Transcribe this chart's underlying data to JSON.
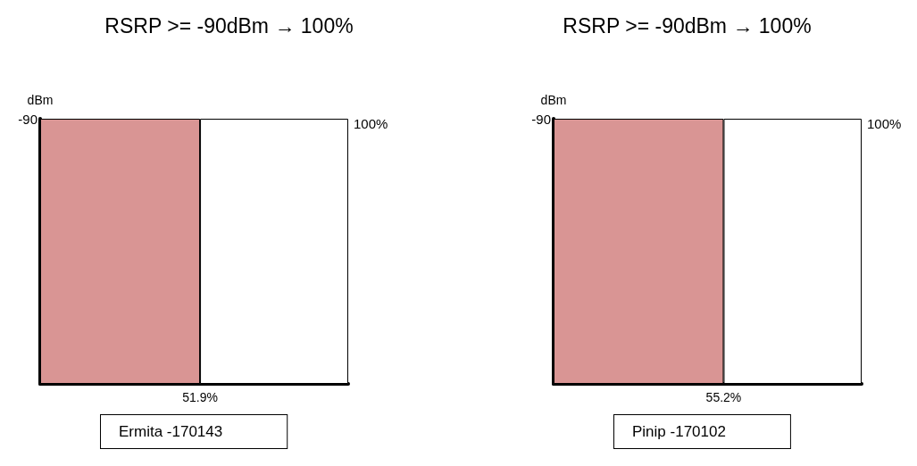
{
  "chart_data": [
    {
      "type": "bar",
      "title": "RSRP >= -90dBm → 100%",
      "ylabel": "dBm",
      "orientation": "horizontal",
      "stacked": true,
      "categories": [
        null
      ],
      "series": [
        {
          "color": "#d99594",
          "values": [
            51.9
          ]
        },
        {
          "color": "#ffffff",
          "values": [
            48.1
          ]
        }
      ],
      "xlim": [
        0,
        100
      ],
      "xticks": [
        {
          "value": 51.9,
          "label": "51.9%"
        }
      ],
      "grid": false,
      "annotations": [
        "-90",
        "Ermita -170143",
        {
          "text": "100%",
          "x": 100
        }
      ]
    },
    {
      "type": "bar",
      "title": "RSRP >= -90dBm → 100%",
      "ylabel": "dBm",
      "orientation": "horizontal",
      "stacked": true,
      "categories": [
        null
      ],
      "series": [
        {
          "color": "#d99594",
          "values": [
            55.2
          ]
        },
        {
          "color": "#ffffff",
          "values": [
            44.8
          ]
        }
      ],
      "xlim": [
        0,
        100
      ],
      "xticks": [
        {
          "value": 55.2,
          "label": "55.2%"
        }
      ],
      "grid": false,
      "annotations": [
        "-90",
        "Pinip -170102",
        {
          "text": "100%",
          "x": 100
        }
      ]
    }
  ]
}
